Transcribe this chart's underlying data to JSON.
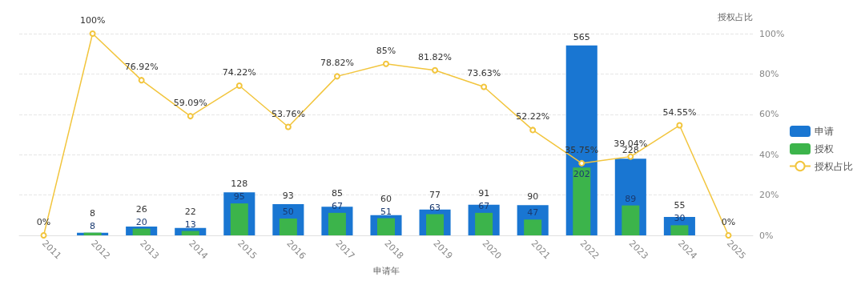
{
  "chart_data": {
    "type": "bar",
    "categories": [
      "2011",
      "2012",
      "2013",
      "2014",
      "2015",
      "2016",
      "2017",
      "2018",
      "2019",
      "2020",
      "2021",
      "2022",
      "2023",
      "2024",
      "2025"
    ],
    "series": [
      {
        "name": "申请",
        "color": "#1976d2",
        "values": [
          null,
          8,
          26,
          22,
          128,
          93,
          85,
          60,
          77,
          91,
          90,
          565,
          228,
          55,
          null
        ]
      },
      {
        "name": "授权",
        "color": "#3cb44b",
        "values": [
          null,
          8,
          20,
          13,
          95,
          50,
          67,
          51,
          63,
          67,
          47,
          202,
          89,
          30,
          null
        ]
      },
      {
        "name": "授权占比",
        "type": "line",
        "axis": "y2",
        "color": "#f2c53d",
        "marker": "circle",
        "values": [
          0,
          100,
          76.92,
          59.09,
          74.22,
          53.76,
          78.82,
          85,
          81.82,
          73.63,
          52.22,
          35.75,
          39.04,
          54.55,
          0
        ],
        "value_labels": [
          "0%",
          "100%",
          "76.92%",
          "59.09%",
          "74.22%",
          "53.76%",
          "78.82%",
          "85%",
          "81.82%",
          "73.63%",
          "52.22%",
          "35.75%",
          "39.04%",
          "54.55%",
          "0%"
        ]
      }
    ],
    "data_labels": true,
    "xlabel": "申请年",
    "y2label": "授权占比",
    "ylim": [
      0,
      600
    ],
    "y2lim": [
      0,
      100
    ],
    "y2ticks": [
      {
        "value": 0,
        "label": "0%"
      },
      {
        "value": 20,
        "label": "20%"
      },
      {
        "value": 40,
        "label": "40%"
      },
      {
        "value": 60,
        "label": "60%"
      },
      {
        "value": 80,
        "label": "80%"
      },
      {
        "value": 100,
        "label": "100%"
      }
    ],
    "tick_labels": [
      "x",
      "y2"
    ],
    "grid": "y2",
    "legend": "right"
  }
}
